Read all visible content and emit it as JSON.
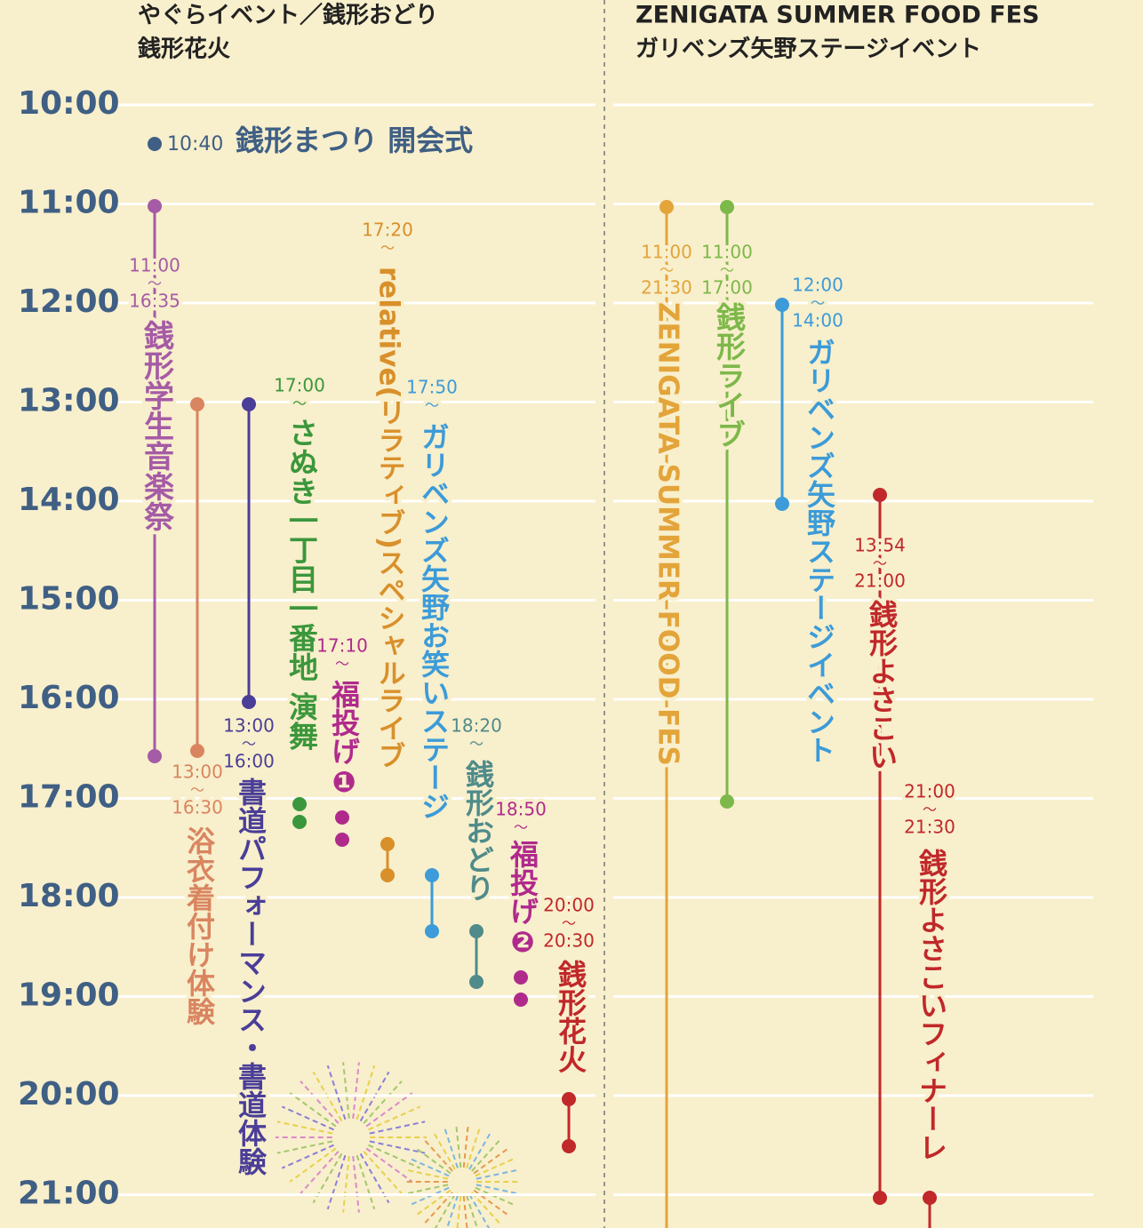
{
  "header": {
    "left": [
      "やぐらイベント／銭形おどり",
      "銭形花火"
    ],
    "right": [
      "ZENIGATA SUMMER FOOD FES",
      "ガリベンズ矢野ステージイベント"
    ]
  },
  "hours": [
    "10:00",
    "11:00",
    "12:00",
    "13:00",
    "14:00",
    "15:00",
    "16:00",
    "17:00",
    "18:00",
    "19:00",
    "20:00",
    "21:00"
  ],
  "opening": {
    "time": "10:40",
    "title": "銭形まつり 開会式"
  },
  "separator": "～",
  "events": [
    {
      "title": "銭形学生音楽祭",
      "start": "11:00",
      "end": "16:35"
    },
    {
      "title": "浴衣着付け体験",
      "start": "13:00",
      "end": "16:30"
    },
    {
      "title": "書道パフォーマンス・書道体験",
      "start": "13:00",
      "end": "16:00"
    },
    {
      "title": "さぬき一丁目一番地 演舞",
      "start": "17:00"
    },
    {
      "title": "福投げ❶",
      "start": "17:10"
    },
    {
      "title": "relative(リラティブ)スペシャルライブ",
      "start": "17:20"
    },
    {
      "title": "ガリベンズ矢野お笑いステージ",
      "start": "17:50"
    },
    {
      "title": "銭形おどり",
      "start": "18:20"
    },
    {
      "title": "福投げ❷",
      "start": "18:50"
    },
    {
      "title": "銭形花火",
      "start": "20:00",
      "end": "20:30"
    },
    {
      "title": "ZENIGATA SUMMER FOOD FES",
      "start": "11:00",
      "end": "21:30"
    },
    {
      "title": "銭形ライブ",
      "start": "11:00",
      "end": "17:00"
    },
    {
      "title": "ガリベンズ矢野ステージイベント",
      "start": "12:00",
      "end": "14:00"
    },
    {
      "title": "銭形よさこい",
      "start": "13:54",
      "end": "21:00"
    },
    {
      "title": "銭形よさこいフィナーレ",
      "start": "21:00",
      "end": "21:30"
    }
  ]
}
